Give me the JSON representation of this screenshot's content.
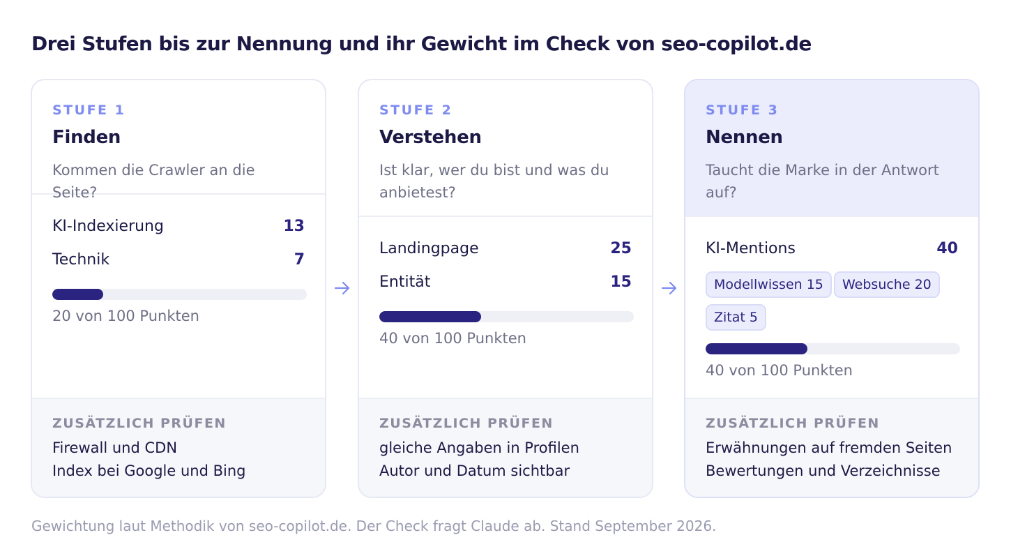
{
  "title": "Drei Stufen bis zur Nennung und ihr Gewicht im Check von seo-copilot.de",
  "colors": {
    "accent": "#7e8bf0",
    "bar_fill": "#2b2380",
    "bar_track": "#eef0f6",
    "highlight_bg": "#ebedfd",
    "footer_bg": "#f6f7fb"
  },
  "stages": [
    {
      "label": "STUFE 1",
      "name": "Finden",
      "question": "Kommen die Crawler an die Seite?",
      "metrics": [
        {
          "name": "KI-Indexierung",
          "value": "13"
        },
        {
          "name": "Technik",
          "value": "7"
        }
      ],
      "score": 20,
      "score_text": "20 von 100 Punkten",
      "extra_label": "ZUSÄTZLICH PRÜFEN",
      "extra": [
        "Firewall und CDN",
        "Index bei Google und Bing"
      ]
    },
    {
      "label": "STUFE 2",
      "name": "Verstehen",
      "question": "Ist klar, wer du bist und was du anbietest?",
      "metrics": [
        {
          "name": "Landingpage",
          "value": "25"
        },
        {
          "name": "Entität",
          "value": "15"
        }
      ],
      "score": 40,
      "score_text": "40 von 100 Punkten",
      "extra_label": "ZUSÄTZLICH PRÜFEN",
      "extra": [
        "gleiche Angaben in Profilen",
        "Autor und Datum sichtbar"
      ]
    },
    {
      "label": "STUFE 3",
      "name": "Nennen",
      "question": "Taucht die Marke in der Antwort auf?",
      "metrics": [
        {
          "name": "KI-Mentions",
          "value": "40"
        }
      ],
      "chips": [
        "Modellwissen 15",
        "Websuche 20",
        "Zitat 5"
      ],
      "score": 40,
      "score_text": "40 von 100 Punkten",
      "extra_label": "ZUSÄTZLICH PRÜFEN",
      "extra": [
        "Erwähnungen auf fremden Seiten",
        "Bewertungen und Verzeichnisse"
      ]
    }
  ],
  "caption": "Gewichtung laut Methodik von seo-copilot.de. Der Check fragt Claude ab. Stand September 2026."
}
